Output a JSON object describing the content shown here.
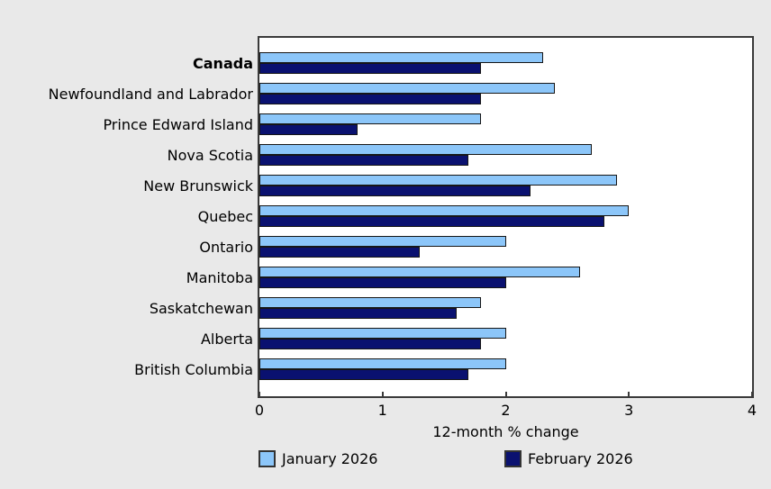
{
  "chart_data": {
    "type": "bar",
    "orientation": "horizontal",
    "title": "",
    "xlabel": "12-month % change",
    "xlim": [
      0,
      4
    ],
    "xticks": [
      0,
      1,
      2,
      3,
      4
    ],
    "grid": false,
    "legend_position": "bottom",
    "categories": [
      "Canada",
      "Newfoundland and Labrador",
      "Prince Edward Island",
      "Nova Scotia",
      "New Brunswick",
      "Quebec",
      "Ontario",
      "Manitoba",
      "Saskatchewan",
      "Alberta",
      "British Columbia"
    ],
    "bold_categories": [
      "Canada"
    ],
    "series": [
      {
        "name": "January 2026",
        "color": "#8CC6F9",
        "values": [
          2.3,
          2.4,
          1.8,
          2.7,
          2.9,
          3.0,
          2.0,
          2.6,
          1.8,
          2.0,
          2.0
        ]
      },
      {
        "name": "February 2026",
        "color": "#0A1170",
        "values": [
          1.8,
          1.8,
          0.8,
          1.7,
          2.2,
          2.8,
          1.3,
          2.0,
          1.6,
          1.8,
          1.7
        ]
      }
    ]
  },
  "colors": {
    "background": "#E9E9E9",
    "plot_background": "#FFFFFF",
    "plot_border": "#3A3A3A",
    "bar_outline": "#161616",
    "text": "#000000"
  }
}
